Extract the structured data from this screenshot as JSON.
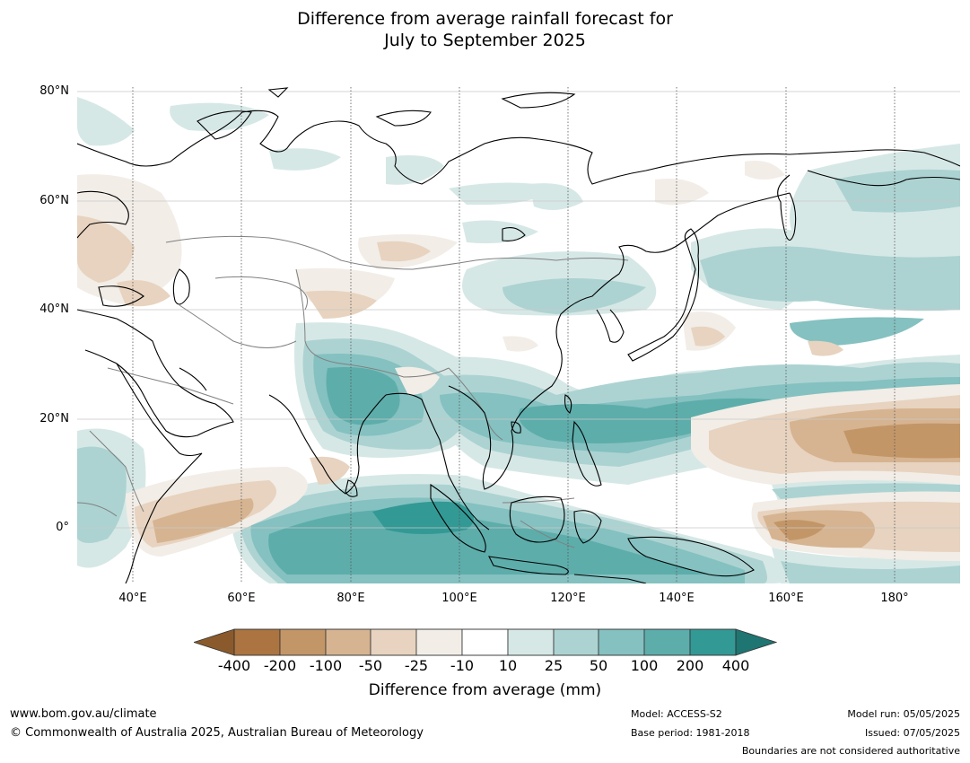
{
  "title": {
    "line1": "Difference from average rainfall forecast for",
    "line2": "July to September 2025"
  },
  "map": {
    "latitude_labels": [
      "80°N",
      "60°N",
      "40°N",
      "20°N",
      "0°"
    ],
    "longitude_labels": [
      "40°E",
      "60°E",
      "80°E",
      "100°E",
      "120°E",
      "140°E",
      "160°E",
      "180°"
    ],
    "latitude_range": [
      -10,
      80
    ],
    "longitude_range": [
      30,
      192
    ]
  },
  "legend": {
    "ticks": [
      "-400",
      "-200",
      "-100",
      "-50",
      "-25",
      "-10",
      "10",
      "25",
      "50",
      "100",
      "200",
      "400"
    ],
    "colors": [
      "#8a5a2c",
      "#ab7440",
      "#c39668",
      "#d6b491",
      "#e7d3bf",
      "#f2ede7",
      "#ffffff",
      "#d6e8e6",
      "#acd3d2",
      "#84c1c0",
      "#5dadab",
      "#339995",
      "#1e7571"
    ],
    "label": "Difference from average (mm)"
  },
  "footer": {
    "website": "www.bom.gov.au/climate",
    "copyright": "© Commonwealth of Australia 2025, Australian Bureau of Meteorology",
    "model": "Model: ACCESS-S2",
    "base_period": "Base period: 1981-2018",
    "model_run": "Model run: 05/05/2025",
    "issued": "Issued: 07/05/2025",
    "disclaimer": "Boundaries are not considered authoritative"
  }
}
